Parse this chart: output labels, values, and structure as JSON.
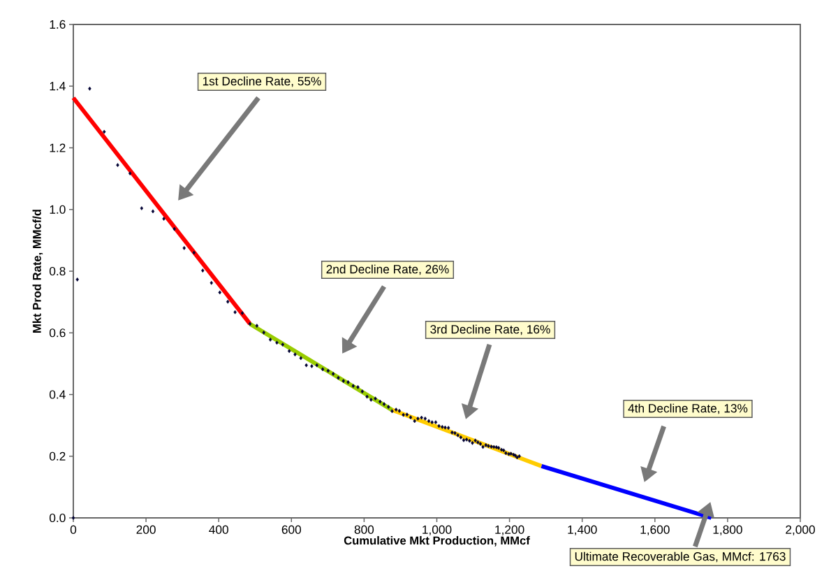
{
  "chart_data": {
    "type": "scatter",
    "xlabel": "Cumulative Mkt Production, MMcf",
    "ylabel": "Mkt Prod Rate, MMcf/d",
    "xlim": [
      0,
      2000
    ],
    "ylim": [
      0,
      1.6
    ],
    "xticks": [
      0,
      200,
      400,
      600,
      800,
      {
        "value": 1000,
        "label": "1,000"
      },
      {
        "value": 1200,
        "label": "1,200"
      },
      {
        "value": 1400,
        "label": "1,400"
      },
      {
        "value": 1600,
        "label": "1,600"
      },
      {
        "value": 1800,
        "label": "1,800"
      },
      {
        "value": 2000,
        "label": "2,000"
      }
    ],
    "yticks": [
      {
        "value": 0,
        "label": "0.0"
      },
      0.2,
      0.4,
      0.6,
      0.8,
      {
        "value": 1,
        "label": "1.0"
      },
      1.2,
      1.4,
      1.6
    ],
    "series": [
      {
        "type": "line",
        "marker": "none",
        "color": "#ff0000",
        "x": [
          0,
          486
        ],
        "values": [
          1.362,
          0.629
        ]
      },
      {
        "type": "line",
        "marker": "none",
        "color": "#99cc00",
        "x": [
          486,
          877
        ],
        "values": [
          0.629,
          0.35
        ]
      },
      {
        "type": "line",
        "marker": "none",
        "color": "#ffcc00",
        "x": [
          877,
          1288
        ],
        "values": [
          0.35,
          0.168
        ]
      },
      {
        "type": "line",
        "marker": "none",
        "color": "#0000ff",
        "x": [
          1288,
          1755
        ],
        "values": [
          0.168,
          0.0
        ]
      },
      {
        "marker": "diamond",
        "color": "#000033",
        "x": [
          0,
          11,
          45,
          85,
          122,
          156,
          188,
          219,
          249,
          278,
          305,
          332,
          356,
          380,
          403,
          425,
          445,
          465,
          486,
          505,
          524,
          542,
          560,
          576,
          594,
          610,
          626,
          641,
          656,
          670,
          686,
          701,
          715,
          729,
          743,
          756,
          770,
          783,
          795,
          808,
          819,
          831,
          844,
          855,
          867,
          877,
          888,
          897,
          908,
          918,
          928,
          939,
          948,
          958,
          968,
          978,
          987,
          997,
          1006,
          1015,
          1023,
          1032,
          1042,
          1050,
          1058,
          1066,
          1074,
          1082,
          1090,
          1098,
          1106,
          1113,
          1120,
          1127,
          1135,
          1142,
          1150,
          1157,
          1164,
          1170,
          1178,
          1184,
          1190,
          1198,
          1204,
          1211,
          1216,
          1221,
          1227
        ],
        "values": [
          0.0,
          0.773,
          1.392,
          1.252,
          1.144,
          1.117,
          1.004,
          0.994,
          0.97,
          0.937,
          0.875,
          0.86,
          0.802,
          0.762,
          0.731,
          0.701,
          0.667,
          0.664,
          0.629,
          0.623,
          0.601,
          0.578,
          0.568,
          0.562,
          0.541,
          0.53,
          0.518,
          0.495,
          0.492,
          0.495,
          0.482,
          0.477,
          0.467,
          0.454,
          0.444,
          0.44,
          0.428,
          0.424,
          0.41,
          0.393,
          0.383,
          0.387,
          0.377,
          0.369,
          0.36,
          0.346,
          0.351,
          0.347,
          0.334,
          0.335,
          0.326,
          0.314,
          0.322,
          0.325,
          0.322,
          0.314,
          0.31,
          0.31,
          0.298,
          0.295,
          0.293,
          0.292,
          0.277,
          0.275,
          0.268,
          0.261,
          0.252,
          0.254,
          0.25,
          0.243,
          0.251,
          0.245,
          0.24,
          0.23,
          0.236,
          0.233,
          0.231,
          0.23,
          0.229,
          0.227,
          0.221,
          0.219,
          0.21,
          0.207,
          0.208,
          0.205,
          0.202,
          0.196,
          0.2
        ]
      }
    ],
    "annotations": [
      "1st Decline Rate, 55%",
      "2nd Decline Rate, 26%",
      "3rd Decline Rate, 16%",
      "4th Decline Rate, 13%",
      "Ultimate Recoverable Gas, MMcf: 1763"
    ]
  }
}
